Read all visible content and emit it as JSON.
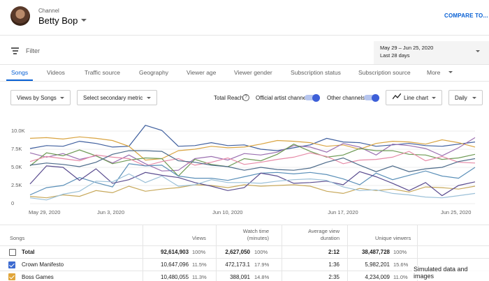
{
  "header": {
    "channel_label": "Channel",
    "channel_name": "Betty Bop",
    "compare_label": "COMPARE TO..."
  },
  "filter": {
    "label": "Filter",
    "date_range": "May 29 – Jun 25, 2020",
    "date_sub": "Last 28 days"
  },
  "tabs": [
    {
      "label": "Songs",
      "active": true
    },
    {
      "label": "Videos"
    },
    {
      "label": "Traffic source"
    },
    {
      "label": "Geography"
    },
    {
      "label": "Viewer age"
    },
    {
      "label": "Viewer gender"
    },
    {
      "label": "Subscription status"
    },
    {
      "label": "Subscription source"
    },
    {
      "label": "More"
    }
  ],
  "controls": {
    "metric": "Views by Songs",
    "secondary": "Select secondary metric",
    "total_reach": "Total Reach",
    "help": "?",
    "official_channel": "Official artist channel",
    "other_channels": "Other channels",
    "chart_type": "Line chart",
    "granularity": "Daily"
  },
  "chart_data": {
    "type": "line",
    "y_ticks": [
      "10.0K",
      "7.5K",
      "5.0K",
      "2.5K",
      "0"
    ],
    "ylim": [
      0,
      10000
    ],
    "x_ticks": [
      "May 29, 2020",
      "Jun 3, 2020",
      "Jun 10, 2020",
      "Jun 17, 2020",
      "Jun 25, 2020"
    ],
    "x_tick_days": [
      0,
      5,
      12,
      19,
      27
    ],
    "grid": true,
    "series": [
      {
        "color": "#3f5f9e",
        "values": [
          7600,
          8000,
          7900,
          8600,
          8300,
          7800,
          7900,
          10800,
          10100,
          7900,
          8000,
          8400,
          8000,
          8100,
          7500,
          7300,
          7700,
          8100,
          9000,
          8500,
          8400,
          7900,
          8100,
          8300,
          8000,
          7900,
          8200,
          8500
        ]
      },
      {
        "color": "#d9a441",
        "values": [
          9000,
          9100,
          8900,
          9200,
          9000,
          8700,
          7900,
          6000,
          6200,
          7300,
          7500,
          7900,
          7700,
          7800,
          8200,
          8700,
          8600,
          8400,
          7900,
          8100,
          7500,
          8300,
          8600,
          8500,
          8200,
          8800,
          8400,
          7800
        ]
      },
      {
        "color": "#9b6fb0",
        "values": [
          7000,
          6400,
          6900,
          6100,
          6600,
          5600,
          6700,
          5500,
          4500,
          4600,
          6200,
          6500,
          6000,
          6900,
          6700,
          7100,
          8000,
          7800,
          7100,
          8300,
          7800,
          6700,
          8200,
          8000,
          7600,
          6600,
          7700,
          9100
        ]
      },
      {
        "color": "#6e9a54",
        "values": [
          5200,
          7000,
          6600,
          7400,
          6600,
          5500,
          6000,
          6300,
          6200,
          3800,
          6100,
          5400,
          5100,
          6200,
          5900,
          6800,
          8200,
          7200,
          6400,
          6700,
          7600,
          7300,
          7300,
          6800,
          6700,
          6100,
          6300,
          6800
        ]
      },
      {
        "color": "#e68aa7",
        "values": [
          5800,
          6500,
          6200,
          5900,
          6700,
          6400,
          6200,
          5200,
          5800,
          6200,
          5300,
          5700,
          6300,
          5400,
          5700,
          6100,
          6400,
          7000,
          6500,
          5500,
          6000,
          6100,
          6400,
          7200,
          5900,
          6500,
          5700,
          5600
        ]
      },
      {
        "color": "#4d6b8a",
        "values": [
          5300,
          5600,
          5400,
          5100,
          5700,
          6800,
          7300,
          7300,
          7200,
          5900,
          5700,
          5300,
          5100,
          4600,
          5000,
          4700,
          4600,
          4900,
          5700,
          6300,
          5300,
          4400,
          5200,
          4400,
          4800,
          5000,
          5800,
          6200
        ]
      },
      {
        "color": "#5a8fb8",
        "values": [
          1200,
          2200,
          2500,
          3600,
          2900,
          2300,
          5500,
          5200,
          5300,
          3800,
          3500,
          3500,
          3200,
          3700,
          4200,
          4300,
          4100,
          4300,
          4000,
          3400,
          2600,
          4200,
          3300,
          3900,
          4500,
          3800,
          3500,
          5000
        ]
      },
      {
        "color": "#c7a85a",
        "values": [
          1000,
          800,
          1200,
          1000,
          1800,
          1500,
          2400,
          1700,
          2000,
          2200,
          2600,
          2500,
          2200,
          2600,
          2400,
          2500,
          2600,
          2400,
          1700,
          1400,
          2100,
          1800,
          2000,
          1600,
          2300,
          2200,
          2000,
          2400
        ]
      },
      {
        "color": "#5a4c8f",
        "values": [
          2700,
          5200,
          5000,
          3200,
          4800,
          2800,
          3300,
          4300,
          3900,
          3600,
          2900,
          2400,
          1800,
          2200,
          4200,
          3800,
          2800,
          2900,
          3100,
          2600,
          4400,
          3700,
          2800,
          1800,
          2900,
          1100,
          2500,
          3000
        ]
      },
      {
        "color": "#9bc0d8",
        "values": [
          800,
          500,
          1300,
          1700,
          3100,
          3000,
          4100,
          2900,
          3800,
          2400,
          2600,
          3300,
          2900,
          2900,
          2800,
          3100,
          3300,
          3400,
          3200,
          2300,
          1800,
          1900,
          1400,
          1200,
          900,
          800,
          1100,
          1400
        ]
      }
    ]
  },
  "table": {
    "headers": {
      "name": "Songs",
      "views": "Views",
      "watch_time": "Watch time\n(minutes)",
      "avg_duration": "Average view\nduration",
      "unique": "Unique viewers"
    },
    "rows": [
      {
        "name": "Total",
        "checked": false,
        "color": "",
        "views": "92,614,903",
        "views_pct": "100%",
        "watch": "2,627,050",
        "watch_pct": "100%",
        "avg": "2:12",
        "unique": "38,487,728",
        "unique_pct": "100%"
      },
      {
        "name": "Crown Manifesto",
        "checked": true,
        "color": "#3d6bd0",
        "views": "10,647,096",
        "views_pct": "11.5%",
        "watch": "472,173.1",
        "watch_pct": "17.9%",
        "avg": "1:36",
        "unique": "5,982,201",
        "unique_pct": "15.6%"
      },
      {
        "name": "Boss Games",
        "checked": true,
        "color": "#e0a53a",
        "views": "10,480,055",
        "views_pct": "11.3%",
        "watch": "388,091",
        "watch_pct": "14.8%",
        "avg": "2:35",
        "unique": "4,234,009",
        "unique_pct": "11.0%"
      }
    ]
  },
  "footer_note": "Simulated data and images"
}
